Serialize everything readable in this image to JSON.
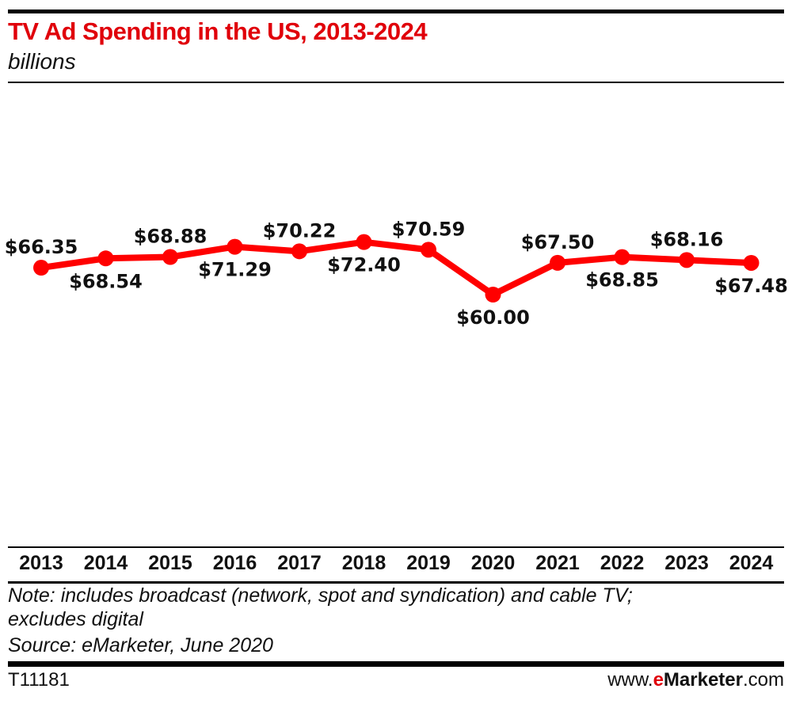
{
  "header": {
    "title": "TV Ad Spending in the US, 2013-2024",
    "subtitle": "billions"
  },
  "chart_data": {
    "type": "line",
    "title": "TV Ad Spending in the US, 2013-2024",
    "subtitle": "billions",
    "xlabel": "",
    "ylabel": "billions",
    "categories": [
      "2013",
      "2014",
      "2015",
      "2016",
      "2017",
      "2018",
      "2019",
      "2020",
      "2021",
      "2022",
      "2023",
      "2024"
    ],
    "series": [
      {
        "name": "TV Ad Spending",
        "color": "#ff0000",
        "values": [
          66.35,
          68.54,
          68.88,
          71.29,
          70.22,
          72.4,
          70.59,
          60.0,
          67.5,
          68.85,
          68.16,
          67.48
        ],
        "labels": [
          "$66.35",
          "$68.54",
          "$68.88",
          "$71.29",
          "$70.22",
          "$72.40",
          "$70.59",
          "$60.00",
          "$67.50",
          "$68.85",
          "$68.16",
          "$67.48"
        ],
        "label_positions": [
          "above",
          "below",
          "above",
          "below",
          "above",
          "below",
          "above",
          "below",
          "above",
          "below",
          "above",
          "below"
        ]
      }
    ],
    "ylim": [
      48,
      80
    ],
    "grid": false,
    "legend": "none"
  },
  "footer": {
    "note_line1": "Note: includes broadcast (network, spot and syndication) and cable TV;",
    "note_line2": "excludes digital",
    "source": "Source: eMarketer, June 2020",
    "chart_id": "T11181",
    "brand_prefix": "www.",
    "brand_e": "e",
    "brand_name": "Marketer",
    "brand_suffix": ".com"
  }
}
